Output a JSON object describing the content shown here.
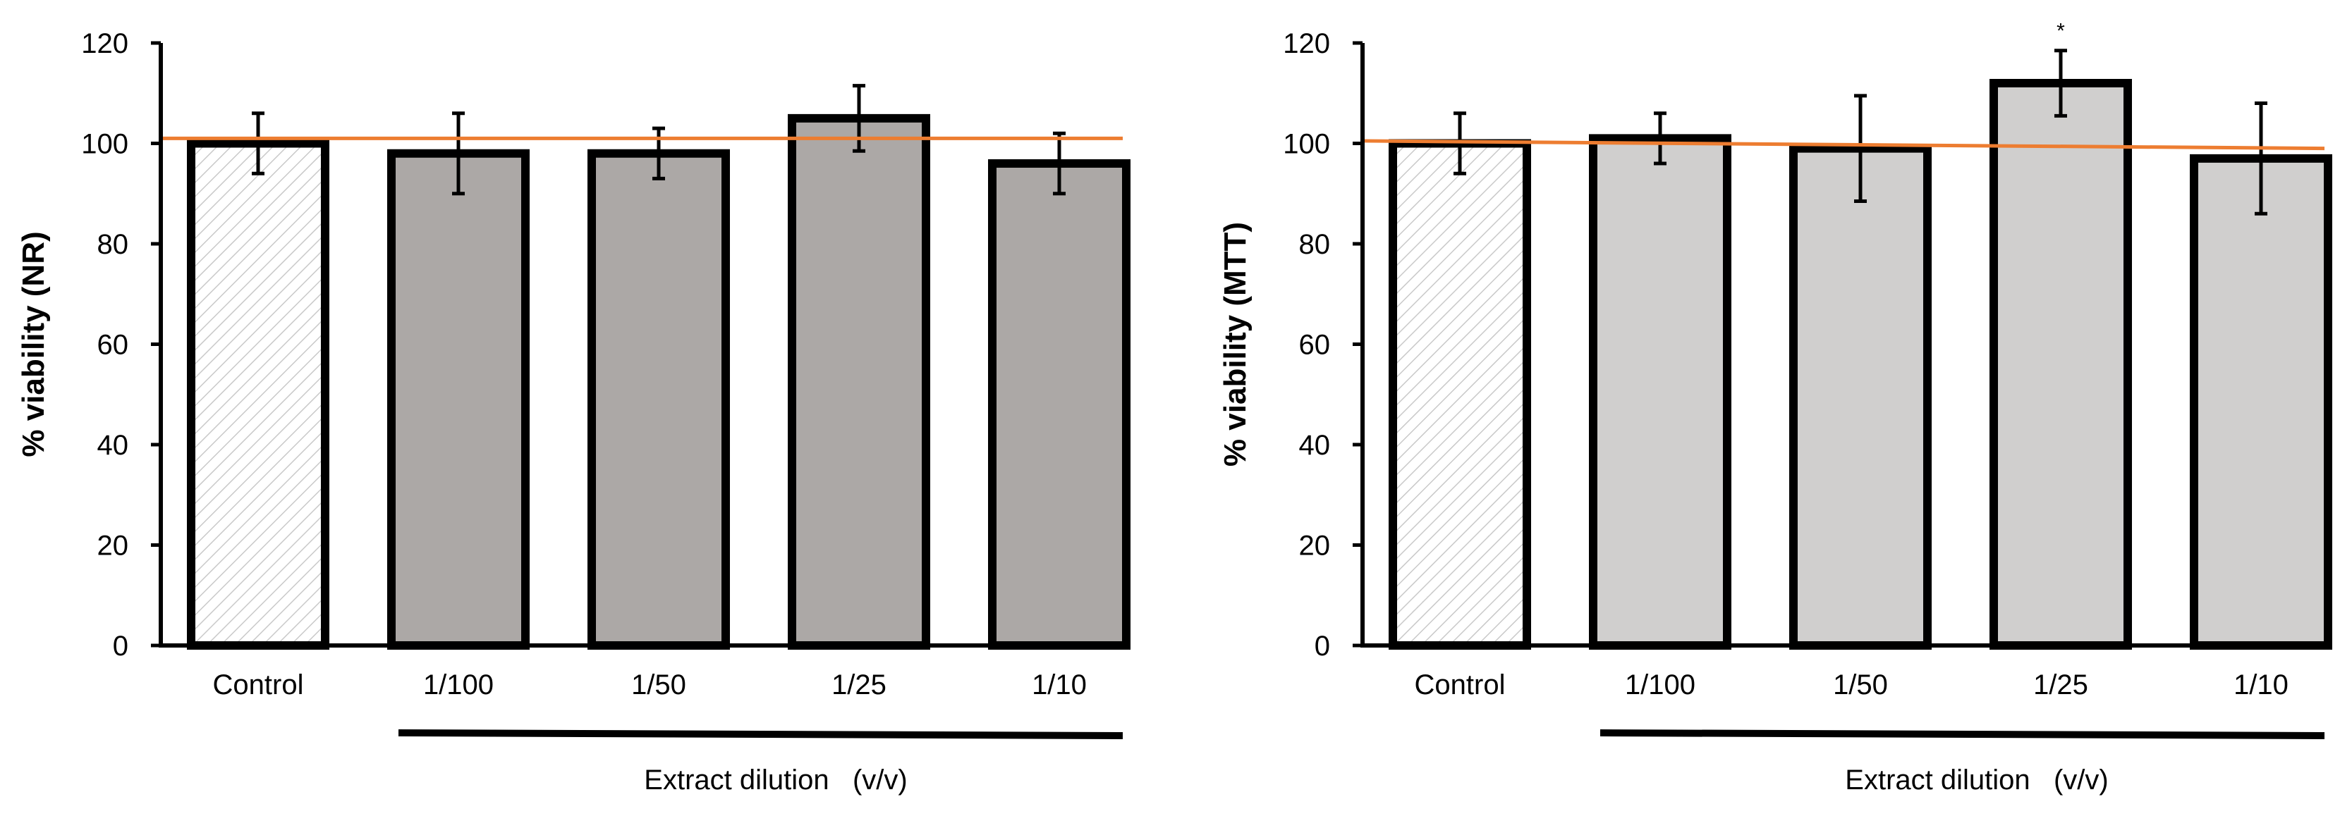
{
  "chart_data": [
    {
      "type": "bar",
      "id": "nr",
      "title": "",
      "categories": [
        "Control",
        "1/100",
        "1/50",
        "1/25",
        "1/10"
      ],
      "values": [
        100,
        98,
        98,
        105,
        96
      ],
      "errors": [
        6,
        8,
        5,
        6.5,
        6
      ],
      "significance": [
        "",
        "",
        "",
        "",
        ""
      ],
      "ylabel": "% viability (NR)",
      "xlabel": "Extract dilution   (v/v)",
      "ylim": [
        0,
        120
      ],
      "yticks": [
        0,
        20,
        40,
        60,
        80,
        100,
        120
      ],
      "reference_line": [
        101,
        101
      ],
      "bar_fill": "#aca8a6",
      "control_pattern": "diagonal-hatch",
      "reference_line_color": "#ed7d31"
    },
    {
      "type": "bar",
      "id": "mtt",
      "title": "",
      "categories": [
        "Control",
        "1/100",
        "1/50",
        "1/25",
        "1/10"
      ],
      "values": [
        100,
        101,
        99,
        112,
        97
      ],
      "errors": [
        6,
        5,
        10.5,
        6.5,
        11
      ],
      "significance": [
        "",
        "",
        "",
        "*",
        ""
      ],
      "ylabel": "% viability (MTT)",
      "xlabel": "Extract dilution   (v/v)",
      "ylim": [
        0,
        120
      ],
      "yticks": [
        0,
        20,
        40,
        60,
        80,
        100,
        120
      ],
      "reference_line": [
        100.5,
        99
      ],
      "bar_fill": "#d0cfce",
      "control_pattern": "diagonal-hatch",
      "reference_line_color": "#ed7d31"
    }
  ]
}
